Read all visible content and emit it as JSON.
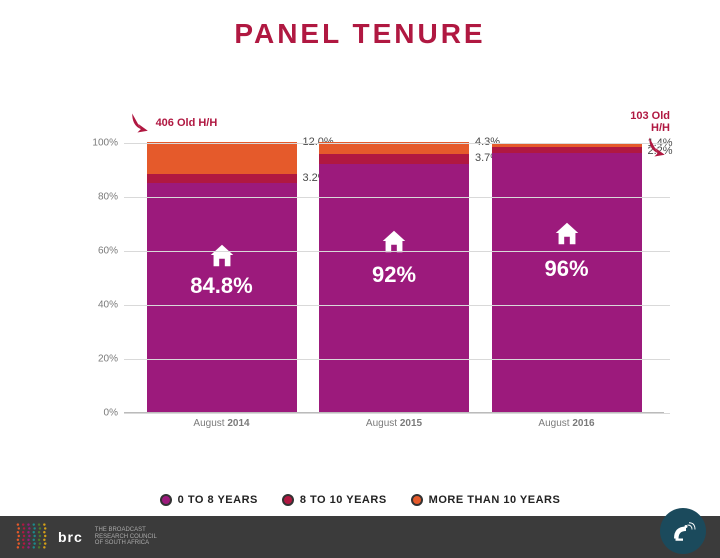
{
  "title": "PANEL TENURE",
  "colors": {
    "title": "#b01841",
    "seg_main": "#9c1a7c",
    "seg_mid": "#b01841",
    "seg_top": "#e55a2b",
    "axis_text": "#7a7a7a",
    "grid": "#d9d9d9",
    "footer_bg": "#3b3b3b",
    "badge_bg": "#1b4a5c"
  },
  "chart": {
    "type": "stacked-bar",
    "y_ticks": [
      "0%",
      "20%",
      "40%",
      "60%",
      "80%",
      "100%"
    ],
    "y_max": 100,
    "bars": [
      {
        "x_label_prefix": "August ",
        "x_label_bold": "2014",
        "main": 84.8,
        "mid": 3.2,
        "top": 12.0,
        "main_label": "84.8%",
        "mid_label": "3.2%",
        "top_label": "12.0%",
        "callout": "406 Old H/H",
        "callout_color": "#b01841"
      },
      {
        "x_label_prefix": "August ",
        "x_label_bold": "2015",
        "main": 92.0,
        "mid": 3.7,
        "top": 4.3,
        "main_label": "92%",
        "mid_label": "3.7%",
        "top_label": "4.3%"
      },
      {
        "x_label_prefix": "August ",
        "x_label_bold": "2016",
        "main": 96.0,
        "mid": 2.2,
        "top": 1.4,
        "main_label": "96%",
        "mid_label": "2.2%",
        "top_label": "1.4%",
        "callout": "103 Old H/H",
        "callout_color": "#b01841",
        "callout_side": "right"
      }
    ]
  },
  "legend": {
    "items": [
      {
        "label": "0 TO 8 YEARS",
        "fill": "#9c1a7c"
      },
      {
        "label": "8 TO 10 YEARS",
        "fill": "#b01841"
      },
      {
        "label": "MORE THAN 10 YEARS",
        "fill": "#e55a2b"
      }
    ]
  },
  "footer": {
    "brand": "brc",
    "brand_sub1": "THE BROADCAST",
    "brand_sub2": "RESEARCH COUNCIL",
    "brand_sub3": "OF SOUTH AFRICA"
  }
}
